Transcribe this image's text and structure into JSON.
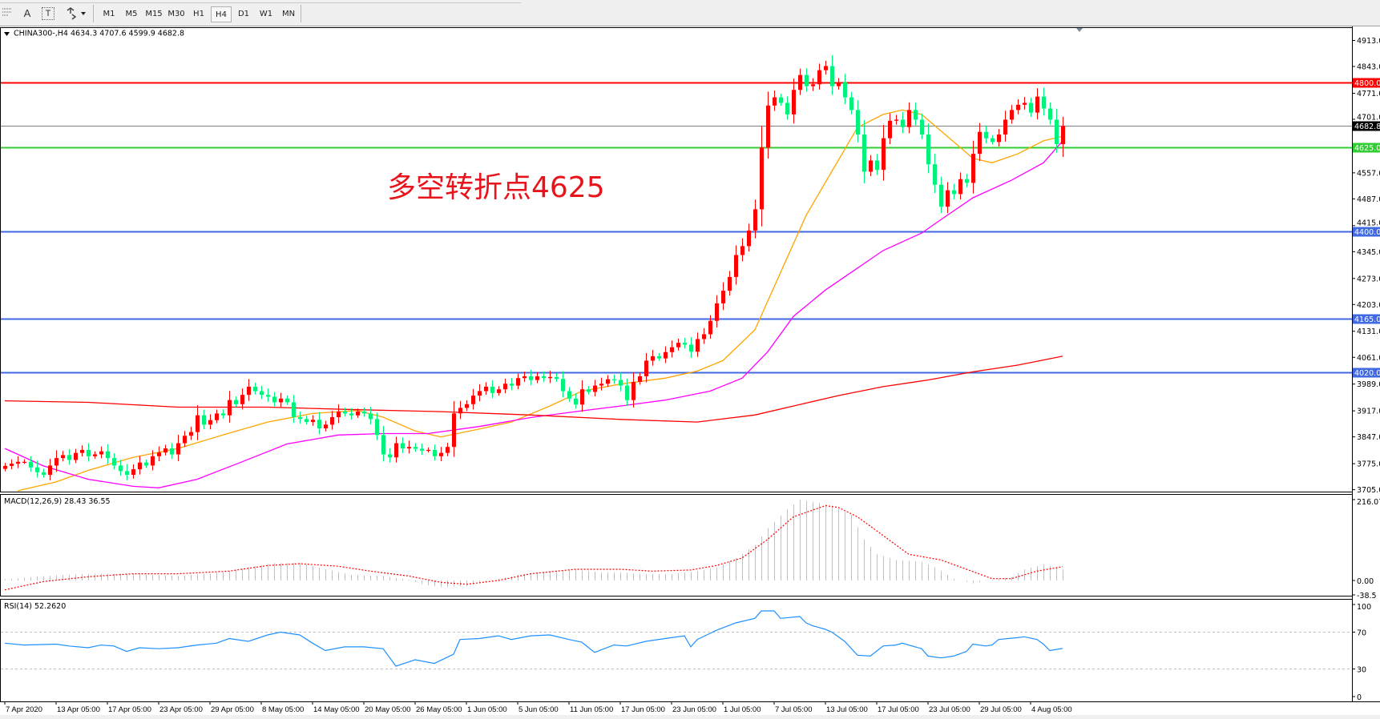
{
  "toolbar": {
    "icons": [
      "grid-icon",
      "text-icon",
      "text-label-icon",
      "arrows-icon"
    ],
    "text_icon_label": "A",
    "text_label_icon_label": "T",
    "timeframes": [
      "M1",
      "M5",
      "M15",
      "M30",
      "H1",
      "H4",
      "D1",
      "W1",
      "MN"
    ],
    "active_timeframe": "H4"
  },
  "chart_data": [
    {
      "type": "candlestick",
      "symbol_label": "CHINA300-,H4",
      "ohlc_header": "4634.3 4707.6 4599.9 4682.8",
      "last_bar": {
        "open": 4634.3,
        "high": 4707.6,
        "low": 4599.9,
        "close": 4682.8
      },
      "annotation": "多空转折点4625",
      "colors": {
        "up": "#ff0000",
        "down": "#00f27a",
        "ma_fast": "#ffa500",
        "ma_mid": "#ff00ff",
        "ma_slow": "#ff0000",
        "annotation": "#e8141b"
      },
      "ylim": [
        3705,
        4913
      ],
      "price_ticks": [
        "4913.0",
        "4843.0",
        "4771.0",
        "4701.0",
        "4557.0",
        "4487.0",
        "4415.0",
        "4345.0",
        "4273.0",
        "4203.0",
        "4131.0",
        "4061.0",
        "3989.0",
        "3917.0",
        "3847.0",
        "3775.0",
        "3705.0"
      ],
      "date_labels": [
        "7 Apr 2020",
        "13 Apr 05:00",
        "17 Apr 05:00",
        "23 Apr 05:00",
        "29 Apr 05:00",
        "8 May 05:00",
        "14 May 05:00",
        "20 May 05:00",
        "26 May 05:00",
        "1 Jun 05:00",
        "5 Jun 05:00",
        "11 Jun 05:00",
        "17 Jun 05:00",
        "23 Jun 05:00",
        "1 Jul 05:00",
        "7 Jul 05:00",
        "13 Jul 05:00",
        "17 Jul 05:00",
        "23 Jul 05:00",
        "29 Jul 05:00",
        "4 Aug 05:00"
      ],
      "horizontal_lines": [
        {
          "price": 4800.0,
          "label": "4800.0",
          "color": "#ff0000"
        },
        {
          "price": 4682.8,
          "label": "4682.8",
          "color": "#808080",
          "label_bg": "#000000"
        },
        {
          "price": 4625.0,
          "label": "4625.0",
          "color": "#32cd32"
        },
        {
          "price": 4400.0,
          "label": "4400.0",
          "color": "#4169e1"
        },
        {
          "price": 4165.0,
          "label": "4165.0",
          "color": "#4169e1"
        },
        {
          "price": 4020.0,
          "label": "4020.0",
          "color": "#4169e1"
        }
      ],
      "close": [
        3769,
        3775,
        3780,
        3780,
        3765,
        3752,
        3745,
        3770,
        3790,
        3798,
        3785,
        3804,
        3812,
        3795,
        3800,
        3808,
        3790,
        3770,
        3755,
        3745,
        3760,
        3778,
        3770,
        3795,
        3805,
        3816,
        3800,
        3830,
        3850,
        3860,
        3905,
        3880,
        3892,
        3910,
        3905,
        3946,
        3935,
        3960,
        3982,
        3970,
        3960,
        3955,
        3940,
        3950,
        3940,
        3900,
        3895,
        3887,
        3893,
        3870,
        3880,
        3900,
        3915,
        3910,
        3905,
        3915,
        3910,
        3895,
        3852,
        3800,
        3792,
        3830,
        3816,
        3820,
        3815,
        3810,
        3812,
        3795,
        3804,
        3820,
        3910,
        3925,
        3935,
        3958,
        3970,
        3982,
        3965,
        3975,
        3990,
        3985,
        4005,
        4010,
        4000,
        4010,
        4005,
        4008,
        4003,
        3970,
        3950,
        3934,
        3975,
        3968,
        3985,
        3990,
        4002,
        4000,
        3985,
        3946,
        3995,
        4010,
        4052,
        4064,
        4058,
        4075,
        4088,
        4100,
        4095,
        4076,
        4110,
        4123,
        4159,
        4206,
        4240,
        4277,
        4336,
        4360,
        4402,
        4459,
        4625,
        4738,
        4760,
        4745,
        4714,
        4780,
        4820,
        4790,
        4795,
        4833,
        4844,
        4790,
        4800,
        4760,
        4726,
        4660,
        4560,
        4590,
        4565,
        4650,
        4697,
        4700,
        4680,
        4726,
        4700,
        4660,
        4580,
        4525,
        4466,
        4510,
        4500,
        4540,
        4530,
        4608,
        4667,
        4650,
        4640,
        4660,
        4700,
        4726,
        4740,
        4745,
        4719,
        4762,
        4730,
        4700,
        4634.3,
        4682.8
      ],
      "moving_averages": [
        {
          "key": "ma_fast",
          "points": [
            [
              2,
              3702
            ],
            [
              8,
              3726
            ],
            [
              13,
              3757
            ],
            [
              20,
              3792
            ],
            [
              27,
              3816
            ],
            [
              34,
              3852
            ],
            [
              41,
              3887
            ],
            [
              48,
              3910
            ],
            [
              55,
              3918
            ],
            [
              59,
              3900
            ],
            [
              64,
              3863
            ],
            [
              68,
              3847
            ],
            [
              74,
              3868
            ],
            [
              79,
              3887
            ],
            [
              85,
              3930
            ],
            [
              90,
              3970
            ],
            [
              96,
              3989
            ],
            [
              103,
              4005
            ],
            [
              108,
              4024
            ],
            [
              112,
              4052
            ],
            [
              117,
              4135
            ],
            [
              121,
              4289
            ],
            [
              125,
              4443
            ],
            [
              129,
              4561
            ],
            [
              133,
              4679
            ],
            [
              137,
              4714
            ],
            [
              140,
              4726
            ],
            [
              143,
              4714
            ],
            [
              147,
              4655
            ],
            [
              151,
              4596
            ],
            [
              154,
              4584
            ],
            [
              158,
              4608
            ],
            [
              162,
              4643
            ],
            [
              165,
              4655
            ]
          ]
        },
        {
          "key": "ma_mid",
          "points": [
            [
              0,
              3816
            ],
            [
              6,
              3769
            ],
            [
              13,
              3733
            ],
            [
              20,
              3714
            ],
            [
              24,
              3710
            ],
            [
              30,
              3733
            ],
            [
              37,
              3780
            ],
            [
              44,
              3828
            ],
            [
              52,
              3852
            ],
            [
              59,
              3856
            ],
            [
              66,
              3856
            ],
            [
              74,
              3875
            ],
            [
              82,
              3899
            ],
            [
              89,
              3915
            ],
            [
              96,
              3930
            ],
            [
              103,
              3946
            ],
            [
              110,
              3970
            ],
            [
              115,
              4005
            ],
            [
              119,
              4076
            ],
            [
              123,
              4171
            ],
            [
              128,
              4242
            ],
            [
              132,
              4289
            ],
            [
              137,
              4348
            ],
            [
              143,
              4395
            ],
            [
              146,
              4431
            ],
            [
              151,
              4490
            ],
            [
              157,
              4537
            ],
            [
              162,
              4584
            ],
            [
              165,
              4643
            ]
          ]
        },
        {
          "key": "ma_slow",
          "points": [
            [
              0,
              3944
            ],
            [
              13,
              3940
            ],
            [
              27,
              3927
            ],
            [
              41,
              3927
            ],
            [
              55,
              3920
            ],
            [
              68,
              3915
            ],
            [
              82,
              3906
            ],
            [
              96,
              3894
            ],
            [
              108,
              3887
            ],
            [
              117,
              3906
            ],
            [
              124,
              3934
            ],
            [
              130,
              3958
            ],
            [
              137,
              3982
            ],
            [
              144,
              4000
            ],
            [
              151,
              4022
            ],
            [
              158,
              4040
            ],
            [
              165,
              4064
            ]
          ]
        }
      ]
    },
    {
      "type": "bar",
      "label": "MACD(12,26,9) 28.43 36.55",
      "ylim": [
        -38.5,
        216.07
      ],
      "tick_labels": [
        "216.07",
        "0.00",
        "-38.5"
      ],
      "histogram_color": "#c0c0c0",
      "signal_color": "#ff0000",
      "histogram": [
        [
          0,
          3
        ],
        [
          3,
          8
        ],
        [
          8,
          14
        ],
        [
          13,
          18
        ],
        [
          20,
          18
        ],
        [
          27,
          12
        ],
        [
          34,
          22
        ],
        [
          38,
          35
        ],
        [
          42,
          47
        ],
        [
          46,
          47
        ],
        [
          50,
          30
        ],
        [
          54,
          15
        ],
        [
          59,
          12
        ],
        [
          63,
          2
        ],
        [
          65,
          -10
        ],
        [
          68,
          -18
        ],
        [
          72,
          -15
        ],
        [
          77,
          5
        ],
        [
          81,
          18
        ],
        [
          85,
          25
        ],
        [
          89,
          28
        ],
        [
          93,
          22
        ],
        [
          96,
          22
        ],
        [
          100,
          17
        ],
        [
          104,
          17
        ],
        [
          108,
          25
        ],
        [
          111,
          35
        ],
        [
          114,
          60
        ],
        [
          117,
          95
        ],
        [
          119,
          140
        ],
        [
          122,
          190
        ],
        [
          124,
          216
        ],
        [
          126,
          210
        ],
        [
          129,
          200
        ],
        [
          132,
          175
        ],
        [
          134,
          110
        ],
        [
          136,
          70
        ],
        [
          139,
          55
        ],
        [
          143,
          50
        ],
        [
          145,
          35
        ],
        [
          148,
          5
        ],
        [
          151,
          -8
        ],
        [
          154,
          2
        ],
        [
          157,
          10
        ],
        [
          159,
          30
        ],
        [
          162,
          43
        ],
        [
          165,
          30
        ]
      ],
      "signal": [
        [
          0,
          -25
        ],
        [
          6,
          -3
        ],
        [
          13,
          10
        ],
        [
          20,
          18
        ],
        [
          27,
          18
        ],
        [
          35,
          25
        ],
        [
          41,
          40
        ],
        [
          46,
          45
        ],
        [
          52,
          38
        ],
        [
          57,
          25
        ],
        [
          63,
          12
        ],
        [
          68,
          -5
        ],
        [
          72,
          -10
        ],
        [
          77,
          0
        ],
        [
          82,
          18
        ],
        [
          89,
          30
        ],
        [
          96,
          30
        ],
        [
          101,
          25
        ],
        [
          107,
          28
        ],
        [
          111,
          40
        ],
        [
          115,
          60
        ],
        [
          119,
          110
        ],
        [
          123,
          170
        ],
        [
          128,
          200
        ],
        [
          130,
          195
        ],
        [
          133,
          170
        ],
        [
          137,
          120
        ],
        [
          141,
          70
        ],
        [
          146,
          55
        ],
        [
          150,
          30
        ],
        [
          154,
          5
        ],
        [
          157,
          5
        ],
        [
          161,
          25
        ],
        [
          165,
          37
        ]
      ]
    },
    {
      "type": "line",
      "label": "RSI(14) 52.2620",
      "ylim": [
        0,
        100
      ],
      "levels": [
        70,
        30
      ],
      "tick_labels": [
        "100",
        "70",
        "30",
        "0"
      ],
      "color": "#1e90ff",
      "values": [
        [
          0,
          58
        ],
        [
          3,
          56
        ],
        [
          8,
          57
        ],
        [
          10,
          55
        ],
        [
          13,
          53
        ],
        [
          15,
          56
        ],
        [
          17,
          55
        ],
        [
          19,
          49
        ],
        [
          21,
          53
        ],
        [
          24,
          52
        ],
        [
          27,
          53
        ],
        [
          30,
          56
        ],
        [
          33,
          58
        ],
        [
          35,
          63
        ],
        [
          38,
          60
        ],
        [
          41,
          67
        ],
        [
          43,
          70
        ],
        [
          46,
          67
        ],
        [
          48,
          58
        ],
        [
          50,
          50
        ],
        [
          53,
          54
        ],
        [
          56,
          54
        ],
        [
          59,
          52
        ],
        [
          61,
          33
        ],
        [
          64,
          40
        ],
        [
          67,
          36
        ],
        [
          70,
          46
        ],
        [
          71,
          62
        ],
        [
          74,
          63
        ],
        [
          77,
          66
        ],
        [
          79,
          62
        ],
        [
          82,
          66
        ],
        [
          85,
          67
        ],
        [
          88,
          62
        ],
        [
          90,
          59
        ],
        [
          92,
          48
        ],
        [
          95,
          56
        ],
        [
          97,
          55
        ],
        [
          100,
          60
        ],
        [
          103,
          63
        ],
        [
          106,
          66
        ],
        [
          107,
          54
        ],
        [
          108,
          62
        ],
        [
          111,
          72
        ],
        [
          114,
          80
        ],
        [
          117,
          85
        ],
        [
          118,
          93
        ],
        [
          120,
          93
        ],
        [
          121,
          85
        ],
        [
          124,
          87
        ],
        [
          125,
          80
        ],
        [
          126,
          77
        ],
        [
          128,
          73
        ],
        [
          129,
          70
        ],
        [
          131,
          60
        ],
        [
          133,
          45
        ],
        [
          135,
          44
        ],
        [
          137,
          55
        ],
        [
          139,
          56
        ],
        [
          140,
          58
        ],
        [
          143,
          52
        ],
        [
          144,
          44
        ],
        [
          146,
          42
        ],
        [
          148,
          44
        ],
        [
          150,
          49
        ],
        [
          151,
          57
        ],
        [
          153,
          55
        ],
        [
          154,
          56
        ],
        [
          155,
          62
        ],
        [
          158,
          64
        ],
        [
          159,
          65
        ],
        [
          161,
          62
        ],
        [
          162,
          57
        ],
        [
          163,
          50
        ],
        [
          165,
          52.26
        ]
      ]
    }
  ]
}
